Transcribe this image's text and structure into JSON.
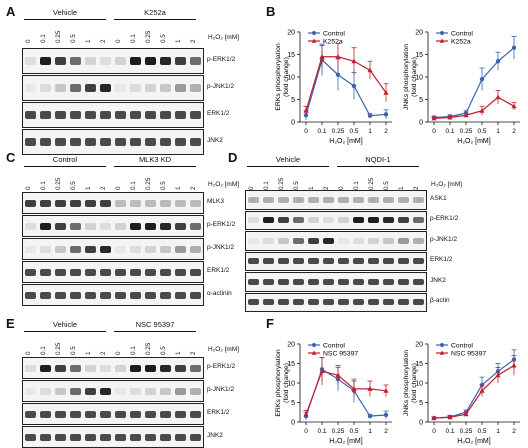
{
  "panels": {
    "A": {
      "letter": "A",
      "groups": [
        "Vehicle",
        "K252a"
      ],
      "lanes": [
        "0",
        "0.1",
        "0.25",
        "0.5",
        "1",
        "2",
        "0",
        "0.1",
        "0.25",
        "0.5",
        "1",
        "2"
      ],
      "h2o_label": "H₂O₂ [mM]",
      "blots": [
        "p-ERK1/2",
        "p-JNK1/2",
        "ERK1/2",
        "JNK2"
      ]
    },
    "C": {
      "letter": "C",
      "groups": [
        "Control",
        "MLK3 KD"
      ],
      "lanes": [
        "0",
        "0.1",
        "0.25",
        "0.5",
        "1",
        "2",
        "0",
        "0.1",
        "0.25",
        "0.5",
        "1",
        "2"
      ],
      "h2o_label": "H₂O₂ [mM]",
      "blots": [
        "MLK3",
        "p-ERK1/2",
        "p-JNK1/2",
        "ERK1/2",
        "α-actinin"
      ]
    },
    "D": {
      "letter": "D",
      "groups": [
        "Vehicle",
        "NQDI-1"
      ],
      "lanes": [
        "0",
        "0.1",
        "0.25",
        "0.5",
        "1",
        "2",
        "0",
        "0.1",
        "0.25",
        "0.5",
        "1",
        "2"
      ],
      "h2o_label": "H₂O₂ [mM]",
      "blots": [
        "ASK1",
        "p-ERK1/2",
        "p-JNK1/2",
        "ERK1/2",
        "JNK2",
        "β-actin"
      ]
    },
    "E": {
      "letter": "E",
      "groups": [
        "Vehicle",
        "NSC 95397"
      ],
      "lanes": [
        "0",
        "0.1",
        "0.25",
        "0.5",
        "1",
        "2",
        "0",
        "0.1",
        "0.25",
        "0.5",
        "1",
        "2"
      ],
      "h2o_label": "H₂O₂ [mM]",
      "blots": [
        "p-ERK1/2",
        "p-JNK1/2",
        "ERK1/2",
        "JNK2"
      ]
    },
    "B": {
      "letter": "B"
    },
    "F": {
      "letter": "F"
    }
  },
  "chart_data": [
    {
      "id": "B-left",
      "type": "line",
      "x": [
        "0",
        "0.1",
        "0.25",
        "0.5",
        "1",
        "2"
      ],
      "xlabel": "H₂O₂ [mM]",
      "ylabel": "ERKs phosphorylation (fold change)",
      "ylim": [
        0,
        20
      ],
      "yticks": [
        "0",
        "5",
        "10",
        "15",
        "20"
      ],
      "legend_position": "top-left",
      "series": [
        {
          "name": "Control",
          "color": "#3b64b0",
          "marker": "circle",
          "values": [
            1.5,
            13.8,
            10.5,
            8.0,
            1.4,
            1.7
          ],
          "err": [
            1.0,
            3.5,
            3.5,
            3.0,
            0.5,
            1.0
          ]
        },
        {
          "name": "K252a",
          "color": "#c0202e",
          "marker": "triangle",
          "values": [
            2.5,
            14.5,
            14.5,
            13.5,
            11.5,
            6.5
          ],
          "err": [
            1.0,
            2.5,
            3.0,
            3.0,
            2.0,
            2.0
          ]
        }
      ]
    },
    {
      "id": "B-right",
      "type": "line",
      "x": [
        "0",
        "0.1",
        "0.25",
        "0.5",
        "1",
        "2"
      ],
      "xlabel": "H₂O₂ [mM]",
      "ylabel": "JNKs phosphorylation (fold change)",
      "ylim": [
        0,
        20
      ],
      "yticks": [
        "0",
        "5",
        "10",
        "15",
        "20"
      ],
      "legend_position": "top-left",
      "series": [
        {
          "name": "Control",
          "color": "#3b64b0",
          "marker": "circle",
          "values": [
            1.0,
            1.2,
            2.0,
            9.5,
            13.5,
            16.5
          ],
          "err": [
            0.3,
            0.4,
            0.5,
            2.5,
            2.0,
            2.5
          ]
        },
        {
          "name": "K252a",
          "color": "#c0202e",
          "marker": "triangle",
          "values": [
            0.8,
            1.0,
            1.5,
            2.5,
            5.5,
            3.5
          ],
          "err": [
            0.3,
            0.3,
            0.4,
            1.0,
            1.5,
            0.8
          ]
        }
      ]
    },
    {
      "id": "F-left",
      "type": "line",
      "x": [
        "0",
        "0.1",
        "0.25",
        "0.5",
        "1",
        "2"
      ],
      "xlabel": "H₂O₂ [mM]",
      "ylabel": "ERKs phosphorylation (fold change)",
      "ylim": [
        0,
        20
      ],
      "yticks": [
        "0",
        "5",
        "10",
        "15",
        "20"
      ],
      "legend_position": "top-left",
      "series": [
        {
          "name": "Control",
          "color": "#3b64b0",
          "marker": "circle",
          "values": [
            1.5,
            13.5,
            11.0,
            8.0,
            1.5,
            1.8
          ],
          "err": [
            1.0,
            3.0,
            3.0,
            3.0,
            0.5,
            1.0
          ]
        },
        {
          "name": "NSC 95397",
          "color": "#c0202e",
          "marker": "triangle",
          "values": [
            2.0,
            13.0,
            12.0,
            8.5,
            8.5,
            8.0
          ],
          "err": [
            1.0,
            3.5,
            2.5,
            2.0,
            2.0,
            1.5
          ]
        }
      ]
    },
    {
      "id": "F-right",
      "type": "line",
      "x": [
        "0",
        "0.1",
        "0.25",
        "0.5",
        "1",
        "2"
      ],
      "xlabel": "H₂O₂ [mM]",
      "ylabel": "JNKs phosphorylation (fold change)",
      "ylim": [
        0,
        20
      ],
      "yticks": [
        "0",
        "5",
        "10",
        "15",
        "20"
      ],
      "legend_position": "top-left",
      "series": [
        {
          "name": "Control",
          "color": "#3b64b0",
          "marker": "circle",
          "values": [
            1.0,
            1.3,
            2.5,
            9.5,
            13.0,
            16.0
          ],
          "err": [
            0.3,
            0.4,
            0.6,
            2.0,
            2.0,
            2.5
          ]
        },
        {
          "name": "NSC 95397",
          "color": "#c0202e",
          "marker": "triangle",
          "values": [
            1.0,
            1.2,
            2.0,
            8.0,
            12.0,
            14.5
          ],
          "err": [
            0.3,
            0.4,
            0.5,
            1.5,
            2.0,
            2.5
          ]
        }
      ]
    }
  ]
}
